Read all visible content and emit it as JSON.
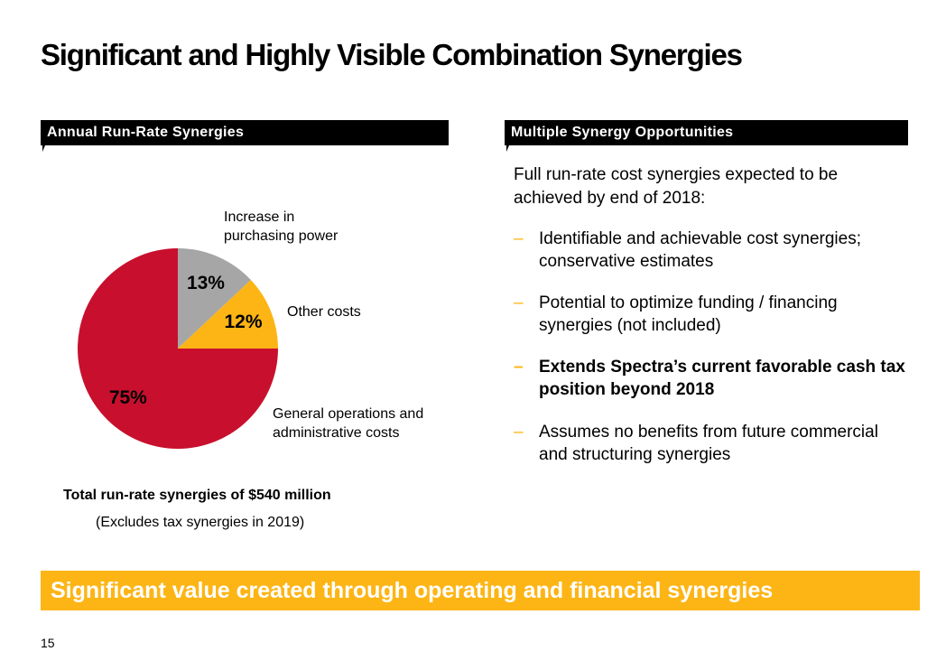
{
  "title": "Significant and Highly Visible Combination Synergies",
  "chart_data": {
    "type": "pie",
    "header": "Annual Run-Rate Synergies",
    "categories": [
      "Increase in purchasing power",
      "Other costs",
      "General operations and administrative costs"
    ],
    "values": [
      13,
      12,
      75
    ],
    "value_labels": [
      "13%",
      "12%",
      "75%"
    ],
    "colors": [
      "#a6a6a6",
      "#fdb515",
      "#c8102e"
    ],
    "total_note": "Total run-rate synergies of $540 million",
    "sub_note": "(Excludes tax synergies in 2019)"
  },
  "panel": {
    "header": "Multiple Synergy Opportunities",
    "intro": "Full run-rate cost synergies expected to be achieved by end of 2018:",
    "bullets": [
      {
        "text": "Identifiable and achievable cost synergies; conservative estimates",
        "bold": false
      },
      {
        "text": "Potential to optimize funding / financing synergies (not included)",
        "bold": false
      },
      {
        "text": "Extends Spectra’s current favorable cash tax position beyond 2018",
        "bold": true
      },
      {
        "text": "Assumes no benefits from future commercial and structuring synergies",
        "bold": false
      }
    ]
  },
  "banner": "Significant value created through operating and financial synergies",
  "page_number": 15
}
